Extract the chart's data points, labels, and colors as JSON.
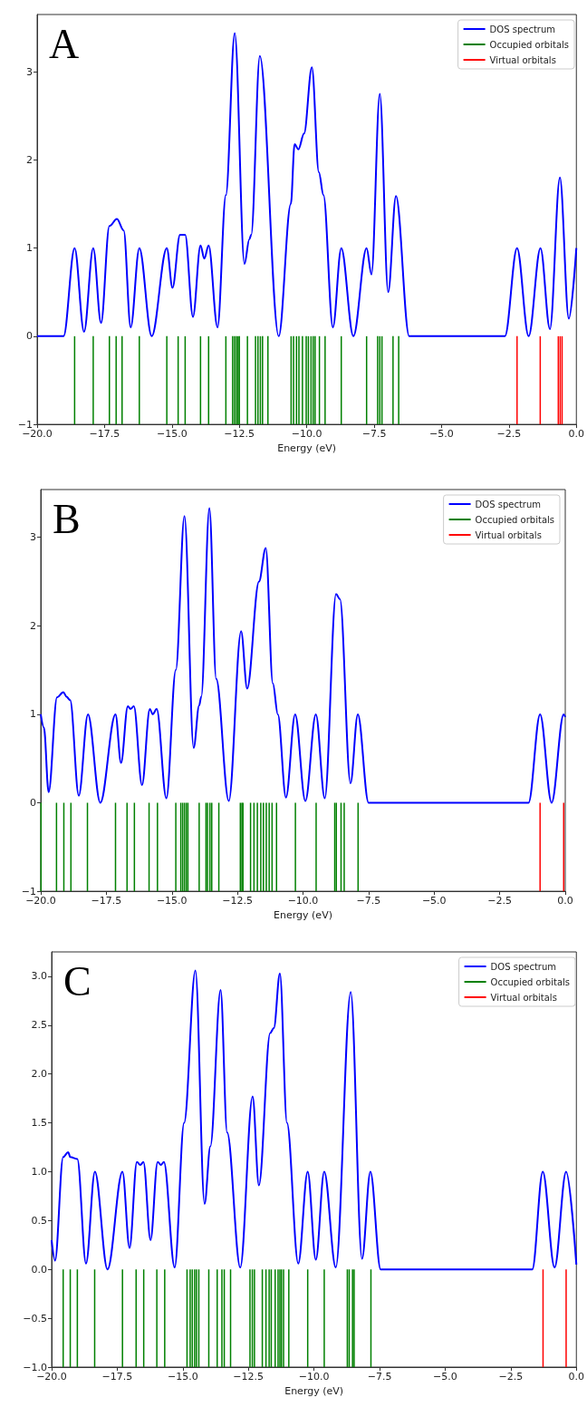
{
  "chart_data": [
    {
      "type": "line",
      "title": "A",
      "xlabel": "Energy (eV)",
      "legend": "top right",
      "marker": "none",
      "xlim": [
        -20,
        0
      ],
      "ylim": [
        -1,
        3.65
      ],
      "xticks": [
        {
          "value": -20,
          "label": "−20.0"
        },
        {
          "value": -17.5,
          "label": "−17.5"
        },
        {
          "value": -15,
          "label": "−15.0"
        },
        {
          "value": -12.5,
          "label": "−12.5"
        },
        {
          "value": -10,
          "label": "−10.0"
        },
        {
          "value": -7.5,
          "label": "−7.5"
        },
        {
          "value": -5,
          "label": "−5.0"
        },
        {
          "value": -2.5,
          "label": "−2.5"
        },
        {
          "value": 0,
          "label": "0.0"
        }
      ],
      "yticks": [
        {
          "value": -1,
          "label": "−1"
        },
        0,
        1,
        2,
        3
      ],
      "series": [
        {
          "name": "DOS spectrum",
          "color": "#0000ff",
          "x": [
            -20,
            -19.02,
            -18.61,
            -18.26,
            -17.92,
            -17.63,
            -17.32,
            -17.04,
            -16.79,
            -16.53,
            -16.21,
            -15.75,
            -15.19,
            -14.98,
            -14.7,
            -14.51,
            -14.22,
            -13.94,
            -13.8,
            -13.64,
            -13.31,
            -13.0,
            -12.67,
            -12.31,
            -12.13,
            -12.06,
            -11.74,
            -11.04,
            -10.59,
            -10.45,
            -10.31,
            -10.1,
            -9.81,
            -9.55,
            -9.38,
            -9.03,
            -8.72,
            -8.27,
            -7.78,
            -7.6,
            -7.29,
            -6.98,
            -6.69,
            -6.2,
            -2.65,
            -2.2,
            -1.77,
            -1.33,
            -0.98,
            -0.61,
            -0.28,
            0
          ],
          "values": [
            0,
            0,
            1.0,
            0.05,
            1.0,
            0.15,
            1.25,
            1.33,
            1.2,
            0.1,
            1.0,
            0.0,
            1.0,
            0.55,
            1.15,
            1.15,
            0.22,
            1.03,
            0.88,
            1.03,
            0.1,
            1.6,
            3.44,
            0.82,
            1.1,
            1.15,
            3.18,
            0.0,
            1.5,
            2.18,
            2.12,
            2.3,
            3.05,
            1.86,
            1.6,
            0.1,
            1.0,
            0.0,
            1.0,
            0.7,
            2.75,
            0.5,
            1.59,
            0,
            0,
            1.0,
            0.0,
            1.0,
            0.08,
            1.8,
            0.2,
            1.0
          ]
        },
        {
          "name": "Occupied orbitals",
          "type": "bar",
          "color": "#008000",
          "x": [
            -18.61,
            -17.92,
            -17.32,
            -17.07,
            -16.85,
            -16.21,
            -15.19,
            -14.77,
            -14.51,
            -13.94,
            -13.64,
            -13.0,
            -12.75,
            -12.68,
            -12.61,
            -12.55,
            -12.5,
            -12.2,
            -11.9,
            -11.81,
            -11.72,
            -11.64,
            -11.44,
            -10.58,
            -10.49,
            -10.38,
            -10.29,
            -10.16,
            -10.02,
            -9.94,
            -9.84,
            -9.76,
            -9.69,
            -9.53,
            -9.32,
            -8.72,
            -7.78,
            -7.37,
            -7.29,
            -7.21,
            -6.8,
            -6.59
          ],
          "values": [
            -1,
            -1,
            -1,
            -1,
            -1,
            -1,
            -1,
            -1,
            -1,
            -1,
            -1,
            -1,
            -1,
            -1,
            -1,
            -1,
            -1,
            -1,
            -1,
            -1,
            -1,
            -1,
            -1,
            -1,
            -1,
            -1,
            -1,
            -1,
            -1,
            -1,
            -1,
            -1,
            -1,
            -1,
            -1,
            -1,
            -1,
            -1,
            -1,
            -1,
            -1,
            -1
          ]
        },
        {
          "name": "Virtual orbitals",
          "type": "bar",
          "color": "#ff0000",
          "x": [
            -2.2,
            -1.34,
            -0.67,
            -0.6,
            -0.53
          ],
          "values": [
            -1,
            -1,
            -1,
            -1,
            -1
          ]
        }
      ]
    },
    {
      "type": "line",
      "title": "B",
      "xlabel": "Energy (eV)",
      "legend": "top right",
      "marker": "none",
      "xlim": [
        -20,
        0
      ],
      "ylim": [
        -1,
        3.54
      ],
      "xticks": [
        {
          "value": -20,
          "label": "−20.0"
        },
        {
          "value": -17.5,
          "label": "−17.5"
        },
        {
          "value": -15,
          "label": "−15.0"
        },
        {
          "value": -12.5,
          "label": "−12.5"
        },
        {
          "value": -10,
          "label": "−10.0"
        },
        {
          "value": -7.5,
          "label": "−7.5"
        },
        {
          "value": -5,
          "label": "−5.0"
        },
        {
          "value": -2.5,
          "label": "−2.5"
        },
        {
          "value": 0,
          "label": "0.0"
        }
      ],
      "yticks": [
        {
          "value": -1,
          "label": "−1"
        },
        0,
        1,
        2,
        3
      ],
      "series": [
        {
          "name": "DOS spectrum",
          "color": "#0000ff",
          "x": [
            -20,
            -19.88,
            -19.7,
            -19.38,
            -19.14,
            -19.02,
            -18.88,
            -18.55,
            -18.2,
            -17.73,
            -17.15,
            -16.94,
            -16.68,
            -16.58,
            -16.45,
            -16.14,
            -15.84,
            -15.73,
            -15.58,
            -15.21,
            -14.85,
            -14.52,
            -14.17,
            -13.96,
            -13.88,
            -13.57,
            -13.31,
            -12.83,
            -12.36,
            -12.13,
            -11.68,
            -11.42,
            -11.15,
            -10.96,
            -10.65,
            -10.3,
            -9.91,
            -9.51,
            -9.17,
            -8.74,
            -8.59,
            -8.19,
            -7.91,
            -7.5,
            -1.4,
            -0.96,
            -0.52,
            -0.06,
            0
          ],
          "values": [
            1.0,
            0.85,
            0.12,
            1.19,
            1.25,
            1.2,
            1.16,
            0.08,
            1.0,
            0.0,
            1.0,
            0.45,
            1.09,
            1.06,
            1.09,
            0.2,
            1.06,
            1.0,
            1.06,
            0.05,
            1.5,
            3.24,
            0.62,
            1.1,
            1.2,
            3.33,
            1.4,
            0.02,
            1.94,
            1.29,
            2.5,
            2.88,
            1.35,
            1.0,
            0.06,
            1.0,
            0.02,
            1.0,
            0.05,
            2.36,
            2.3,
            0.22,
            1.0,
            0.0,
            0.0,
            1.0,
            0.0,
            1.0,
            0.97
          ]
        },
        {
          "name": "Occupied orbitals",
          "type": "bar",
          "color": "#008000",
          "x": [
            -19.99,
            -19.4,
            -19.12,
            -18.85,
            -18.22,
            -17.15,
            -16.71,
            -16.43,
            -15.87,
            -15.55,
            -14.85,
            -14.66,
            -14.59,
            -14.52,
            -14.45,
            -14.39,
            -13.96,
            -13.7,
            -13.64,
            -13.55,
            -13.48,
            -13.21,
            -12.39,
            -12.33,
            -12.29,
            -12.0,
            -11.87,
            -11.74,
            -11.61,
            -11.51,
            -11.4,
            -11.29,
            -11.18,
            -11.01,
            -10.29,
            -9.5,
            -8.79,
            -8.73,
            -8.55,
            -8.43,
            -7.9
          ],
          "values": [
            -1,
            -1,
            -1,
            -1,
            -1,
            -1,
            -1,
            -1,
            -1,
            -1,
            -1,
            -1,
            -1,
            -1,
            -1,
            -1,
            -1,
            -1,
            -1,
            -1,
            -1,
            -1,
            -1,
            -1,
            -1,
            -1,
            -1,
            -1,
            -1,
            -1,
            -1,
            -1,
            -1,
            -1,
            -1,
            -1,
            -1,
            -1,
            -1,
            -1,
            -1
          ]
        },
        {
          "name": "Virtual orbitals",
          "type": "bar",
          "color": "#ff0000",
          "x": [
            -0.96,
            -0.06
          ],
          "values": [
            -1,
            -1
          ]
        }
      ]
    },
    {
      "type": "line",
      "title": "C",
      "xlabel": "Energy (eV)",
      "legend": "top right",
      "marker": "none",
      "xlim": [
        -20,
        0
      ],
      "ylim": [
        -1,
        3.25
      ],
      "xticks": [
        {
          "value": -20,
          "label": "−20.0"
        },
        {
          "value": -17.5,
          "label": "−17.5"
        },
        {
          "value": -15,
          "label": "−15.0"
        },
        {
          "value": -12.5,
          "label": "−12.5"
        },
        {
          "value": -10,
          "label": "−10.0"
        },
        {
          "value": -7.5,
          "label": "−7.5"
        },
        {
          "value": -5,
          "label": "−5.0"
        },
        {
          "value": -2.5,
          "label": "−2.5"
        },
        {
          "value": 0,
          "label": "0.0"
        }
      ],
      "yticks": [
        {
          "value": -1,
          "label": "−1.0"
        },
        {
          "value": -0.5,
          "label": "−0.5"
        },
        {
          "value": 0,
          "label": "0.0"
        },
        0.5,
        {
          "value": 1,
          "label": "1.0"
        },
        1.5,
        {
          "value": 2,
          "label": "2.0"
        },
        2.5,
        {
          "value": 3,
          "label": "3.0"
        }
      ],
      "series": [
        {
          "name": "DOS spectrum",
          "color": "#0000ff",
          "x": [
            -20,
            -19.87,
            -19.56,
            -19.37,
            -19.29,
            -19.02,
            -18.69,
            -18.35,
            -17.87,
            -17.3,
            -17.03,
            -16.75,
            -16.62,
            -16.5,
            -16.23,
            -15.96,
            -15.83,
            -15.72,
            -15.31,
            -14.95,
            -14.52,
            -14.17,
            -13.95,
            -13.56,
            -13.31,
            -12.81,
            -12.34,
            -12.1,
            -11.67,
            -11.53,
            -11.3,
            -11.03,
            -10.6,
            -10.24,
            -9.93,
            -9.61,
            -9.17,
            -8.6,
            -8.17,
            -7.85,
            -7.46,
            -1.68,
            -1.28,
            -0.83,
            -0.39,
            0
          ],
          "values": [
            0.3,
            0.09,
            1.15,
            1.2,
            1.15,
            1.13,
            0.06,
            1.0,
            0.0,
            1.0,
            0.22,
            1.1,
            1.07,
            1.1,
            0.3,
            1.1,
            1.07,
            1.1,
            0.02,
            1.5,
            3.06,
            0.67,
            1.26,
            2.86,
            1.4,
            0.02,
            1.77,
            0.86,
            2.42,
            2.47,
            3.03,
            1.5,
            0.06,
            1.0,
            0.1,
            1.0,
            0.02,
            2.84,
            0.11,
            1.0,
            0.0,
            0.0,
            1.0,
            0.02,
            1.0,
            0.05
          ]
        },
        {
          "name": "Occupied orbitals",
          "type": "bar",
          "color": "#008000",
          "x": [
            -19.56,
            -19.29,
            -19.02,
            -18.36,
            -17.3,
            -16.78,
            -16.49,
            -15.99,
            -15.69,
            -14.84,
            -14.72,
            -14.64,
            -14.55,
            -14.48,
            -14.39,
            -14.01,
            -13.69,
            -13.51,
            -13.42,
            -13.18,
            -12.44,
            -12.35,
            -12.27,
            -11.97,
            -11.83,
            -11.71,
            -11.63,
            -11.48,
            -11.37,
            -11.3,
            -11.24,
            -11.16,
            -10.96,
            -10.24,
            -9.61,
            -8.73,
            -8.66,
            -8.53,
            -8.47,
            -7.83
          ],
          "values": [
            -1,
            -1,
            -1,
            -1,
            -1,
            -1,
            -1,
            -1,
            -1,
            -1,
            -1,
            -1,
            -1,
            -1,
            -1,
            -1,
            -1,
            -1,
            -1,
            -1,
            -1,
            -1,
            -1,
            -1,
            -1,
            -1,
            -1,
            -1,
            -1,
            -1,
            -1,
            -1,
            -1,
            -1,
            -1,
            -1,
            -1,
            -1,
            -1,
            -1
          ]
        },
        {
          "name": "Virtual orbitals",
          "type": "bar",
          "color": "#ff0000",
          "x": [
            -1.27,
            -0.39
          ],
          "values": [
            -1,
            -1
          ]
        }
      ]
    }
  ]
}
